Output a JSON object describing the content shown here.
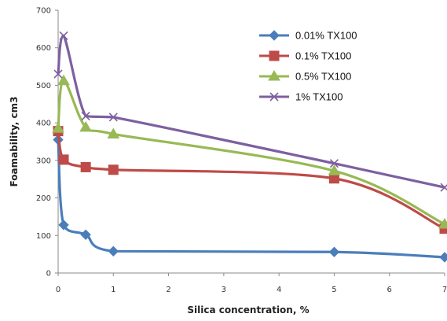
{
  "chart_data": {
    "type": "line",
    "xlabel": "Silica concentration, %",
    "ylabel": "Foamability, cm3",
    "xlim": [
      0,
      7
    ],
    "ylim": [
      0,
      700
    ],
    "x_ticks": [
      0,
      1,
      2,
      3,
      4,
      5,
      6,
      7
    ],
    "y_ticks": [
      0,
      100,
      200,
      300,
      400,
      500,
      600,
      700
    ],
    "grid": false,
    "legend_position": "top-right",
    "series": [
      {
        "name": "0.01% TX100",
        "color": "#4a7ebb",
        "marker": "diamond",
        "x": [
          0,
          0.1,
          0.5,
          1,
          5,
          7
        ],
        "y": [
          355,
          128,
          102,
          58,
          56,
          42
        ]
      },
      {
        "name": "0.1% TX100",
        "color": "#be4b48",
        "marker": "square",
        "x": [
          0,
          0.1,
          0.5,
          1,
          5,
          7
        ],
        "y": [
          378,
          302,
          282,
          275,
          252,
          118
        ]
      },
      {
        "name": "0.5% TX100",
        "color": "#98b954",
        "marker": "triangle",
        "x": [
          0,
          0.1,
          0.5,
          1,
          5,
          7
        ],
        "y": [
          385,
          512,
          388,
          370,
          272,
          130
        ]
      },
      {
        "name": "1% TX100",
        "color": "#7d60a0",
        "marker": "x",
        "x": [
          0,
          0.1,
          0.5,
          1,
          5,
          7
        ],
        "y": [
          530,
          632,
          418,
          415,
          292,
          228
        ]
      }
    ]
  }
}
